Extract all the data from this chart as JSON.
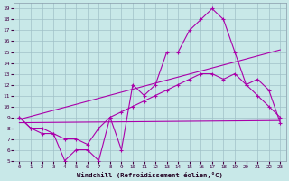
{
  "xlabel": "Windchill (Refroidissement éolien,°C)",
  "bg_color": "#c8e8e8",
  "grid_color": "#a0c0c8",
  "line_color": "#aa00aa",
  "xlim": [
    -0.5,
    23.5
  ],
  "ylim": [
    5,
    19.5
  ],
  "xticks": [
    0,
    1,
    2,
    3,
    4,
    5,
    6,
    7,
    8,
    9,
    10,
    11,
    12,
    13,
    14,
    15,
    16,
    17,
    18,
    19,
    20,
    21,
    22,
    23
  ],
  "yticks": [
    5,
    6,
    7,
    8,
    9,
    10,
    11,
    12,
    13,
    14,
    15,
    16,
    17,
    18,
    19
  ],
  "line1_x": [
    0,
    1,
    2,
    3,
    4,
    5,
    6,
    7,
    8,
    9,
    10,
    11,
    12,
    13,
    14,
    15,
    16,
    17,
    18,
    19,
    20,
    21,
    22,
    23
  ],
  "line1_y": [
    9,
    8,
    7.5,
    7.5,
    5,
    6,
    6,
    5,
    9,
    6,
    12,
    11,
    12,
    15,
    15,
    17,
    18,
    19,
    18,
    15,
    12,
    11,
    10,
    9
  ],
  "line2_x": [
    0,
    1,
    2,
    3,
    4,
    5,
    6,
    7,
    8,
    9,
    10,
    11,
    12,
    13,
    14,
    15,
    16,
    17,
    18,
    19,
    20,
    21,
    22,
    23
  ],
  "line2_y": [
    9,
    8,
    8,
    7.5,
    7,
    7,
    6.5,
    8,
    9,
    9.5,
    10,
    10.5,
    11,
    11.5,
    12,
    12.5,
    13,
    13,
    12.5,
    13,
    12,
    12.5,
    11.5,
    8.5
  ],
  "line3_x": [
    0,
    23
  ],
  "line3_y": [
    8.8,
    15.2
  ],
  "line4_x": [
    0,
    23
  ],
  "line4_y": [
    8.5,
    8.7
  ]
}
